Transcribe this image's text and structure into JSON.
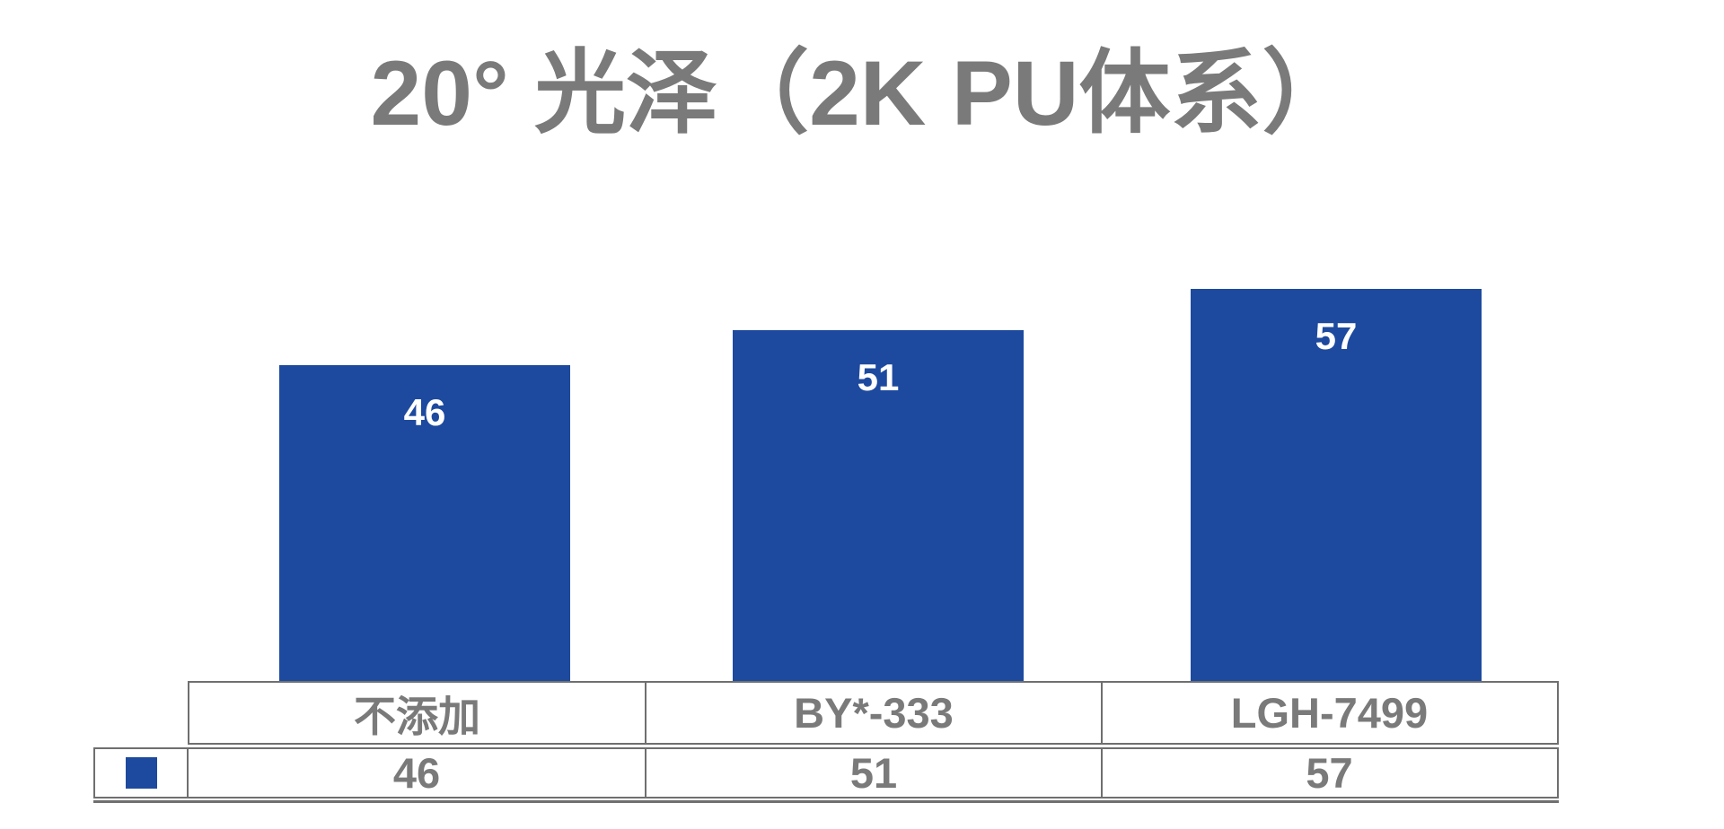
{
  "chart_data": {
    "type": "bar",
    "title": "20° 光泽（2K PU体系）",
    "categories": [
      "不添加",
      "BY*-333",
      "LGH-7499"
    ],
    "values": [
      46,
      51,
      57
    ],
    "series": [
      {
        "name": "",
        "values": [
          46,
          51,
          57
        ]
      }
    ],
    "xlabel": "",
    "ylabel": "",
    "ylim": [
      0,
      60
    ],
    "axis_visible": false,
    "grid": false,
    "value_label_position": "inside-end",
    "data_table_visible": true,
    "legend_position": "data-table-left"
  },
  "colors": {
    "series": "#1d4a9e",
    "title_text": "#7a7a7a",
    "table_text": "#7a7a7a",
    "table_border": "#6f6f6f",
    "bar_value_label": "#ffffff",
    "background": "#ffffff"
  }
}
